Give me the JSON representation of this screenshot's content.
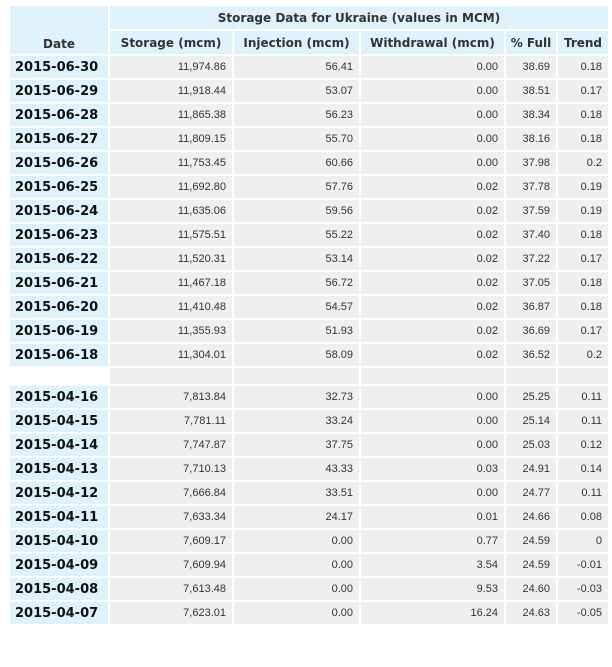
{
  "table": {
    "title": "Storage Data for Ukraine (values in MCM)",
    "columns": [
      "Date",
      "Storage (mcm)",
      "Injection (mcm)",
      "Withdrawal (mcm)",
      "% Full",
      "Trend"
    ],
    "rows_top": [
      [
        "2015-06-30",
        "11,974.86",
        "56.41",
        "0.00",
        "38.69",
        "0.18"
      ],
      [
        "2015-06-29",
        "11,918.44",
        "53.07",
        "0.00",
        "38.51",
        "0.17"
      ],
      [
        "2015-06-28",
        "11,865.38",
        "56.23",
        "0.00",
        "38.34",
        "0.18"
      ],
      [
        "2015-06-27",
        "11,809.15",
        "55.70",
        "0.00",
        "38.16",
        "0.18"
      ],
      [
        "2015-06-26",
        "11,753.45",
        "60.66",
        "0.00",
        "37.98",
        "0.2"
      ],
      [
        "2015-06-25",
        "11,692.80",
        "57.76",
        "0.02",
        "37.78",
        "0.19"
      ],
      [
        "2015-06-24",
        "11,635.06",
        "59.56",
        "0.02",
        "37.59",
        "0.19"
      ],
      [
        "2015-06-23",
        "11,575.51",
        "55.22",
        "0.02",
        "37.40",
        "0.18"
      ],
      [
        "2015-06-22",
        "11,520.31",
        "53.14",
        "0.02",
        "37.22",
        "0.17"
      ],
      [
        "2015-06-21",
        "11,467.18",
        "56.72",
        "0.02",
        "37.05",
        "0.18"
      ],
      [
        "2015-06-20",
        "11,410.48",
        "54.57",
        "0.02",
        "36.87",
        "0.18"
      ],
      [
        "2015-06-19",
        "11,355.93",
        "51.93",
        "0.02",
        "36.69",
        "0.17"
      ],
      [
        "2015-06-18",
        "11,304.01",
        "58.09",
        "0.02",
        "36.52",
        "0.2"
      ]
    ],
    "rows_bottom": [
      [
        "2015-04-16",
        "7,813.84",
        "32.73",
        "0.00",
        "25.25",
        "0.11"
      ],
      [
        "2015-04-15",
        "7,781.11",
        "33.24",
        "0.00",
        "25.14",
        "0.11"
      ],
      [
        "2015-04-14",
        "7,747.87",
        "37.75",
        "0.00",
        "25.03",
        "0.12"
      ],
      [
        "2015-04-13",
        "7,710.13",
        "43.33",
        "0.03",
        "24.91",
        "0.14"
      ],
      [
        "2015-04-12",
        "7,666.84",
        "33.51",
        "0.00",
        "24.77",
        "0.11"
      ],
      [
        "2015-04-11",
        "7,633.34",
        "24.17",
        "0.01",
        "24.66",
        "0.08"
      ],
      [
        "2015-04-10",
        "7,609.17",
        "0.00",
        "0.77",
        "24.59",
        "0"
      ],
      [
        "2015-04-09",
        "7,609.94",
        "0.00",
        "3.54",
        "24.59",
        "-0.01"
      ],
      [
        "2015-04-08",
        "7,613.48",
        "0.00",
        "9.53",
        "24.60",
        "-0.03"
      ],
      [
        "2015-04-07",
        "7,623.01",
        "0.00",
        "16.24",
        "24.63",
        "-0.05"
      ]
    ]
  }
}
